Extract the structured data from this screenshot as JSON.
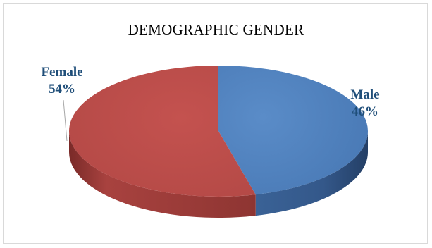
{
  "chart_data": {
    "type": "pie",
    "title": "DEMOGRAPHIC GENDER",
    "slices": [
      {
        "label": "Male",
        "value": 46,
        "value_text": "46%",
        "color": "#4F81BD"
      },
      {
        "label": "Female",
        "value": 54,
        "value_text": "54%",
        "color": "#C0504D"
      }
    ],
    "style": "3d",
    "legend": "none"
  }
}
